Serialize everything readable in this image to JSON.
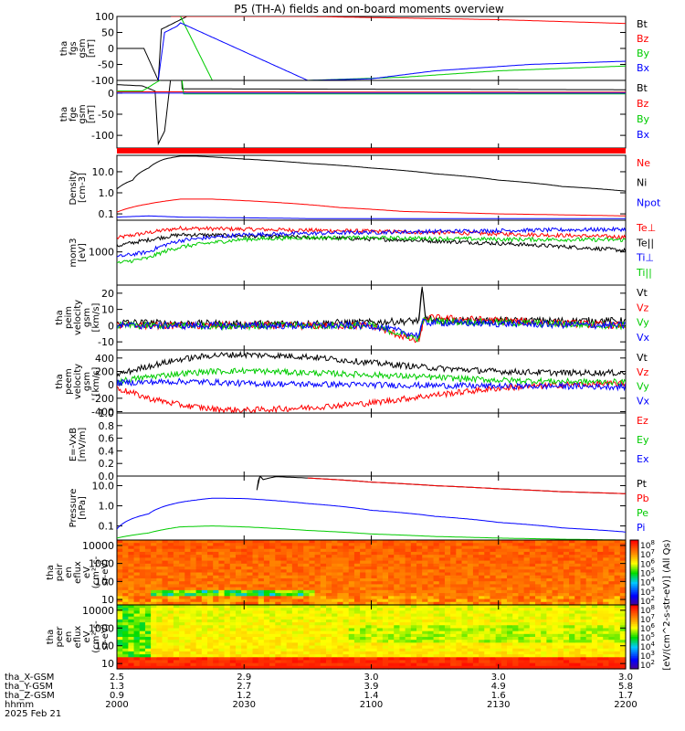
{
  "title": "P5 (TH-A) fields and on-board moments overview",
  "colors": {
    "black": "#000000",
    "red": "#ff0000",
    "green": "#00cc00",
    "blue": "#0000ff"
  },
  "x_axis": {
    "rows": [
      {
        "label": "tha_X-GSM",
        "values": [
          "2.5",
          "2.9",
          "3.0",
          "3.0",
          "3.0"
        ]
      },
      {
        "label": "tha_Y-GSM",
        "values": [
          "1.3",
          "2.7",
          "3.9",
          "4.9",
          "5.8"
        ]
      },
      {
        "label": "tha_Z-GSM",
        "values": [
          "0.9",
          "1.2",
          "1.4",
          "1.6",
          "1.7"
        ]
      },
      {
        "label": "hhmm",
        "values": [
          "2000",
          "2030",
          "2100",
          "2130",
          "2200"
        ]
      }
    ],
    "date": "2025 Feb 21"
  },
  "colorbar": {
    "label": "[eV/(cm^2-s-str-eV)] (All Qs)",
    "ticks": [
      "10^8",
      "10^7",
      "10^6",
      "10^5",
      "10^4",
      "10^3",
      "10^2"
    ]
  },
  "chart_data": [
    {
      "type": "line",
      "ylabel": [
        "tha",
        "fgs",
        "gsm",
        "[nT]"
      ],
      "yticks": [
        "100",
        "50",
        "0",
        "-50",
        "-100"
      ],
      "ylim": [
        -100,
        100
      ],
      "legend": [
        {
          "name": "Bt",
          "color": "#000000"
        },
        {
          "name": "Bz",
          "color": "#ff0000"
        },
        {
          "name": "By",
          "color": "#00cc00"
        },
        {
          "name": "Bx",
          "color": "#0000ff"
        }
      ],
      "series": [
        {
          "name": "Bt",
          "color": "#000000",
          "x": [
            0,
            8.5,
            13,
            14,
            22,
            25,
            30
          ],
          "y": [
            0,
            0,
            -100,
            60,
            100,
            100,
            null
          ]
        },
        {
          "name": "Bz",
          "color": "#ff0000",
          "x": [
            17,
            30,
            60,
            90,
            120,
            160
          ],
          "y": [
            100,
            100,
            100,
            95,
            90,
            78
          ]
        },
        {
          "name": "By",
          "color": "#00cc00",
          "x": [
            20,
            30,
            60,
            90,
            120,
            160
          ],
          "y": [
            100,
            -100,
            -100,
            -90,
            -70,
            -55
          ]
        },
        {
          "name": "Bx",
          "color": "#0000ff",
          "x": [
            13,
            15,
            17,
            19,
            20,
            60,
            80,
            100,
            130,
            160
          ],
          "y": [
            -100,
            50,
            60,
            70,
            80,
            -100,
            -95,
            -70,
            -50,
            -40
          ]
        }
      ]
    },
    {
      "type": "line",
      "ylabel": [
        "tha",
        "fge",
        "gsm",
        "[nT]"
      ],
      "yticks": [
        "0",
        "-50",
        "-100"
      ],
      "ylim": [
        -130,
        30
      ],
      "legend": [
        {
          "name": "Bt",
          "color": "#000000"
        },
        {
          "name": "Bz",
          "color": "#ff0000"
        },
        {
          "name": "By",
          "color": "#00cc00"
        },
        {
          "name": "Bx",
          "color": "#0000ff"
        }
      ],
      "series": [
        {
          "name": "Bt",
          "color": "#000000",
          "x": [
            0,
            8,
            12,
            13,
            15,
            17,
            20,
            20.5,
            21,
            160
          ],
          "y": [
            20,
            17,
            5,
            -120,
            -90,
            40,
            100,
            10,
            10,
            8
          ]
        },
        {
          "name": "Bz",
          "color": "#ff0000",
          "x": [
            0,
            160
          ],
          "y": [
            3,
            2
          ]
        },
        {
          "name": "By",
          "color": "#00cc00",
          "x": [
            0,
            8,
            20,
            21,
            160
          ],
          "y": [
            5,
            5,
            60,
            -2,
            -2
          ]
        },
        {
          "name": "Bx",
          "color": "#0000ff",
          "x": [
            0,
            160
          ],
          "y": [
            0,
            0
          ]
        }
      ]
    },
    {
      "type": "line",
      "ylabel": [
        "Density",
        "[cm-3]"
      ],
      "yticks": [
        "10.0",
        "1.0",
        "0.1"
      ],
      "yscale": "log",
      "ylim": [
        0.05,
        60
      ],
      "legend": [
        {
          "name": "Ne",
          "color": "#ff0000"
        },
        {
          "name": "Ni",
          "color": "#000000"
        },
        {
          "name": "Npot",
          "color": "#0000ff"
        }
      ],
      "series": [
        {
          "name": "Ni",
          "color": "#000000",
          "x": [
            0,
            5,
            10,
            15,
            20,
            25,
            40,
            60,
            80,
            100,
            120,
            140,
            160
          ],
          "y": [
            1.5,
            4,
            15,
            40,
            55,
            55,
            40,
            25,
            15,
            8,
            4,
            2,
            1.2
          ]
        },
        {
          "name": "Ne",
          "color": "#ff0000",
          "x": [
            0,
            10,
            20,
            30,
            50,
            70,
            90,
            120,
            160
          ],
          "y": [
            0.12,
            0.3,
            0.5,
            0.5,
            0.35,
            0.2,
            0.13,
            0.1,
            0.08
          ]
        },
        {
          "name": "Npot",
          "color": "#0000ff",
          "x": [
            0,
            10,
            20,
            60,
            100,
            160
          ],
          "y": [
            0.07,
            0.08,
            0.07,
            0.06,
            0.06,
            0.06
          ]
        }
      ]
    },
    {
      "type": "line",
      "ylabel": [
        "mom3",
        "[eV]"
      ],
      "yticks": [
        "1000"
      ],
      "yscale": "log",
      "ylim": [
        100,
        9000
      ],
      "legend": [
        {
          "name": "Te⊥",
          "color": "#ff0000"
        },
        {
          "name": "Te||",
          "color": "#000000"
        },
        {
          "name": "Ti⊥",
          "color": "#0000ff"
        },
        {
          "name": "Ti||",
          "color": "#00cc00"
        }
      ],
      "series": [
        {
          "name": "Te⊥",
          "color": "#ff0000",
          "x": [
            0,
            10,
            20,
            30,
            60,
            90,
            120,
            160
          ],
          "y": [
            2600,
            3800,
            5200,
            5000,
            4500,
            4000,
            3500,
            2800
          ]
        },
        {
          "name": "Te||",
          "color": "#000000",
          "x": [
            0,
            10,
            20,
            30,
            60,
            90,
            120,
            160
          ],
          "y": [
            1500,
            2300,
            3300,
            3200,
            2700,
            2300,
            1800,
            1100
          ]
        },
        {
          "name": "Ti⊥",
          "color": "#0000ff",
          "x": [
            0,
            10,
            20,
            40,
            60,
            90,
            120,
            160
          ],
          "y": [
            700,
            1000,
            2200,
            3300,
            3600,
            4000,
            4400,
            4800
          ]
        },
        {
          "name": "Ti||",
          "color": "#00cc00",
          "x": [
            0,
            10,
            20,
            40,
            60,
            90,
            120,
            160
          ],
          "y": [
            450,
            650,
            1400,
            2400,
            2700,
            2600,
            2400,
            2300
          ]
        }
      ]
    },
    {
      "type": "line",
      "ylabel": [
        "tha",
        "peim",
        "velocity",
        "gsm",
        "[km/s]"
      ],
      "yticks": [
        "20",
        "10",
        "0",
        "-10"
      ],
      "ylim": [
        -15,
        25
      ],
      "legend": [
        {
          "name": "Vt",
          "color": "#000000"
        },
        {
          "name": "Vz",
          "color": "#ff0000"
        },
        {
          "name": "Vy",
          "color": "#00cc00"
        },
        {
          "name": "Vx",
          "color": "#0000ff"
        }
      ],
      "series": [
        {
          "name": "Vt",
          "color": "#000000",
          "x": [
            0,
            40,
            80,
            95,
            96,
            97,
            100,
            160
          ],
          "y": [
            2,
            1,
            2,
            3,
            24,
            5,
            3,
            3
          ]
        },
        {
          "name": "Vz",
          "color": "#ff0000",
          "x": [
            0,
            40,
            80,
            95,
            96,
            97,
            160
          ],
          "y": [
            0,
            0,
            0,
            -10,
            0,
            5,
            0
          ]
        },
        {
          "name": "Vy",
          "color": "#00cc00",
          "x": [
            0,
            40,
            80,
            95,
            96,
            160
          ],
          "y": [
            0,
            0,
            0,
            -8,
            3,
            0
          ]
        },
        {
          "name": "Vx",
          "color": "#0000ff",
          "x": [
            0,
            40,
            80,
            95,
            96,
            160
          ],
          "y": [
            0,
            0,
            0,
            -6,
            2,
            0
          ]
        }
      ]
    },
    {
      "type": "line",
      "ylabel": [
        "tha",
        "peem",
        "velocity",
        "gsm",
        "[km/s]"
      ],
      "yticks": [
        "400",
        "200",
        "0",
        "-200",
        "-400"
      ],
      "ylim": [
        -420,
        520
      ],
      "legend": [
        {
          "name": "Vt",
          "color": "#000000"
        },
        {
          "name": "Vz",
          "color": "#ff0000"
        },
        {
          "name": "Vy",
          "color": "#00cc00"
        },
        {
          "name": "Vx",
          "color": "#0000ff"
        }
      ],
      "series": [
        {
          "name": "Vt",
          "color": "#000000",
          "x": [
            0,
            10,
            20,
            30,
            40,
            60,
            80,
            100,
            120,
            140,
            160
          ],
          "y": [
            150,
            280,
            380,
            440,
            450,
            420,
            330,
            250,
            200,
            180,
            180
          ]
        },
        {
          "name": "Vz",
          "color": "#ff0000",
          "x": [
            0,
            10,
            20,
            30,
            40,
            60,
            80,
            100,
            120,
            140,
            160
          ],
          "y": [
            -50,
            -200,
            -300,
            -360,
            -380,
            -340,
            -270,
            -150,
            -50,
            0,
            20
          ]
        },
        {
          "name": "Vy",
          "color": "#00cc00",
          "x": [
            0,
            10,
            20,
            30,
            40,
            60,
            80,
            100,
            120,
            140,
            160
          ],
          "y": [
            50,
            120,
            170,
            200,
            210,
            180,
            150,
            110,
            70,
            50,
            40
          ]
        },
        {
          "name": "Vx",
          "color": "#0000ff",
          "x": [
            0,
            10,
            20,
            30,
            40,
            60,
            80,
            100,
            120,
            140,
            160
          ],
          "y": [
            30,
            40,
            50,
            40,
            20,
            10,
            0,
            -10,
            -20,
            -20,
            -30
          ]
        }
      ]
    },
    {
      "type": "line",
      "ylabel": [
        "E=-VxB",
        "[mV/m]"
      ],
      "yticks": [
        "1.0",
        "0.8",
        "0.6",
        "0.4",
        "0.2",
        "0.0"
      ],
      "ylim": [
        0,
        1
      ],
      "legend": [
        {
          "name": "Ez",
          "color": "#ff0000"
        },
        {
          "name": "Ey",
          "color": "#00cc00"
        },
        {
          "name": "Ex",
          "color": "#0000ff"
        }
      ],
      "series": []
    },
    {
      "type": "line",
      "ylabel": [
        "Pressure",
        "[nPa]"
      ],
      "yticks": [
        "10.0",
        "1.0",
        "0.1"
      ],
      "yscale": "log",
      "ylim": [
        0.02,
        30
      ],
      "legend": [
        {
          "name": "Pt",
          "color": "#000000"
        },
        {
          "name": "Pb",
          "color": "#ff0000"
        },
        {
          "name": "Pe",
          "color": "#00cc00"
        },
        {
          "name": "Pi",
          "color": "#0000ff"
        }
      ],
      "series": [
        {
          "name": "Pt",
          "color": "#000000",
          "x": [
            44,
            45,
            46,
            50,
            60,
            80,
            100,
            120,
            140,
            160
          ],
          "y": [
            6,
            30,
            20,
            28,
            24,
            15,
            10,
            7,
            5,
            4
          ]
        },
        {
          "name": "Pb",
          "color": "#ff0000",
          "x": [
            60,
            80,
            100,
            120,
            140,
            160
          ],
          "y": [
            24,
            15,
            10,
            7,
            5,
            4
          ]
        },
        {
          "name": "Pi",
          "color": "#0000ff",
          "x": [
            0,
            10,
            20,
            30,
            40,
            60,
            80,
            100,
            120,
            140,
            160
          ],
          "y": [
            0.07,
            0.4,
            1.5,
            2.4,
            2.3,
            1.3,
            0.6,
            0.3,
            0.15,
            0.08,
            0.05
          ]
        },
        {
          "name": "Pe",
          "color": "#00cc00",
          "x": [
            0,
            10,
            20,
            30,
            40,
            60,
            80,
            100,
            120,
            140,
            160
          ],
          "y": [
            0.025,
            0.045,
            0.09,
            0.1,
            0.09,
            0.06,
            0.04,
            0.03,
            0.025,
            0.022,
            0.02
          ]
        }
      ]
    },
    {
      "type": "heatmap",
      "ylabel": [
        "tha",
        "peir",
        "en",
        "eflux",
        "eV",
        "(cm²-s-",
        "sr-eV)"
      ],
      "yticks": [
        "10000",
        "1000",
        "100",
        "10"
      ],
      "yscale": "log",
      "ylim": [
        5,
        20000
      ],
      "zlog_range": [
        2,
        8
      ]
    },
    {
      "type": "heatmap",
      "ylabel": [
        "tha",
        "peer",
        "en",
        "eflux",
        "eV",
        "(cm²-s-",
        "sr-eV)"
      ],
      "yticks": [
        "10000",
        "1000",
        "100",
        "10"
      ],
      "yscale": "log",
      "ylim": [
        5,
        20000
      ],
      "zlog_range": [
        2,
        8
      ]
    }
  ]
}
